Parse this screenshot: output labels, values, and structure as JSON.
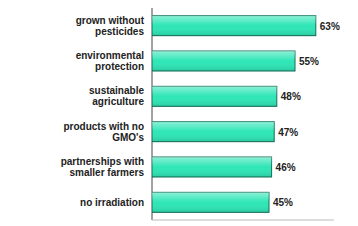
{
  "chart_data": {
    "type": "bar",
    "orientation": "horizontal",
    "categories": [
      "grown without pesticides",
      "environmental protection",
      "sustainable agriculture",
      "products with no GMO's",
      "partnerships with smaller farmers",
      "no irradiation"
    ],
    "values": [
      63,
      55,
      48,
      47,
      46,
      45
    ],
    "value_labels": [
      "63%",
      "55%",
      "48%",
      "47%",
      "46%",
      "45%"
    ],
    "color": "#2ee6b6",
    "xlim": [
      0,
      70
    ],
    "xticks": [],
    "data_labels": true,
    "tick_labels": "y",
    "grid": false
  }
}
